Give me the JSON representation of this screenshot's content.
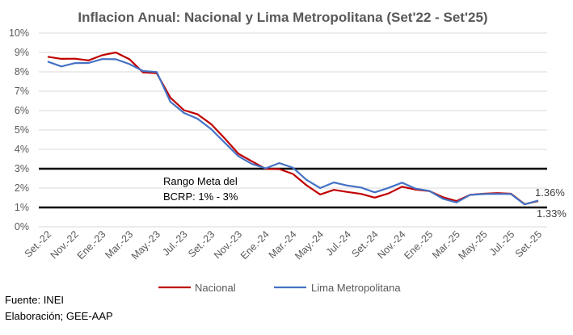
{
  "colors": {
    "nacional": "#C00000",
    "lima": "#4472C4",
    "grid": "#D9D9D9",
    "band": "#000000"
  },
  "source": {
    "fuente": "Fuente: INEI",
    "elaboracion": "Elaboración; GEE-AAP"
  },
  "chart_data": {
    "type": "line",
    "title": "Inflacion Anual: Nacional y Lima Metropolitana (Set'22 - Set'25)",
    "y_ticks": [
      "0%",
      "1%",
      "2%",
      "3%",
      "4%",
      "5%",
      "6%",
      "7%",
      "8%",
      "9%",
      "10%"
    ],
    "ylim": [
      0,
      10
    ],
    "grid": true,
    "legend_position": "bottom",
    "x_tick_labels": [
      "Set.-22",
      "Nov.-22",
      "Ene.-23",
      "Mar.-23",
      "May.-23",
      "Jul.-23",
      "Set.-23",
      "Nov.-23",
      "Ene.-24",
      "Mar.-24",
      "May.-24",
      "Jul.-24",
      "Set.-24",
      "Nov.-24",
      "Ene.-25",
      "Mar.-25",
      "May.-25",
      "Jul.-25",
      "Set.-25"
    ],
    "categories": [
      "Set.-22",
      "Oct.-22",
      "Nov.-22",
      "Dic.-22",
      "Ene.-23",
      "Feb.-23",
      "Mar.-23",
      "Abr.-23",
      "May.-23",
      "Jun.-23",
      "Jul.-23",
      "Ago.-23",
      "Set.-23",
      "Oct.-23",
      "Nov.-23",
      "Dic.-23",
      "Ene.-24",
      "Feb.-24",
      "Mar.-24",
      "Abr.-24",
      "May.-24",
      "Jun.-24",
      "Jul.-24",
      "Ago.-24",
      "Set.-24",
      "Oct.-24",
      "Nov.-24",
      "Dic.-24",
      "Ene.-25",
      "Feb.-25",
      "Mar.-25",
      "Abr.-25",
      "May.-25",
      "Jun.-25",
      "Jul.-25",
      "Ago.-25",
      "Set.-25"
    ],
    "series": [
      {
        "name": "Nacional",
        "values": [
          8.78,
          8.67,
          8.68,
          8.59,
          8.86,
          9.0,
          8.65,
          7.97,
          7.93,
          6.67,
          6.02,
          5.81,
          5.3,
          4.56,
          3.77,
          3.38,
          2.99,
          2.98,
          2.73,
          2.14,
          1.67,
          1.91,
          1.8,
          1.7,
          1.51,
          1.72,
          2.07,
          1.92,
          1.85,
          1.53,
          1.33,
          1.65,
          1.71,
          1.74,
          1.71,
          1.17,
          1.33
        ]
      },
      {
        "name": "Lima Metropolitana",
        "values": [
          8.53,
          8.28,
          8.45,
          8.46,
          8.66,
          8.65,
          8.4,
          8.04,
          7.99,
          6.46,
          5.88,
          5.58,
          5.04,
          4.34,
          3.64,
          3.24,
          3.02,
          3.29,
          3.05,
          2.42,
          2.0,
          2.29,
          2.13,
          2.03,
          1.78,
          2.01,
          2.28,
          1.97,
          1.86,
          1.45,
          1.26,
          1.65,
          1.69,
          1.7,
          1.69,
          1.16,
          1.36
        ]
      }
    ],
    "reference_lines": [
      {
        "value": 1
      },
      {
        "value": 3
      }
    ],
    "annotations": {
      "band_label_line1": "Rango Meta del",
      "band_label_line2": "BCRP: 1% - 3%"
    },
    "end_labels": {
      "lima": "1.36%",
      "nacional": "1.33%"
    }
  }
}
